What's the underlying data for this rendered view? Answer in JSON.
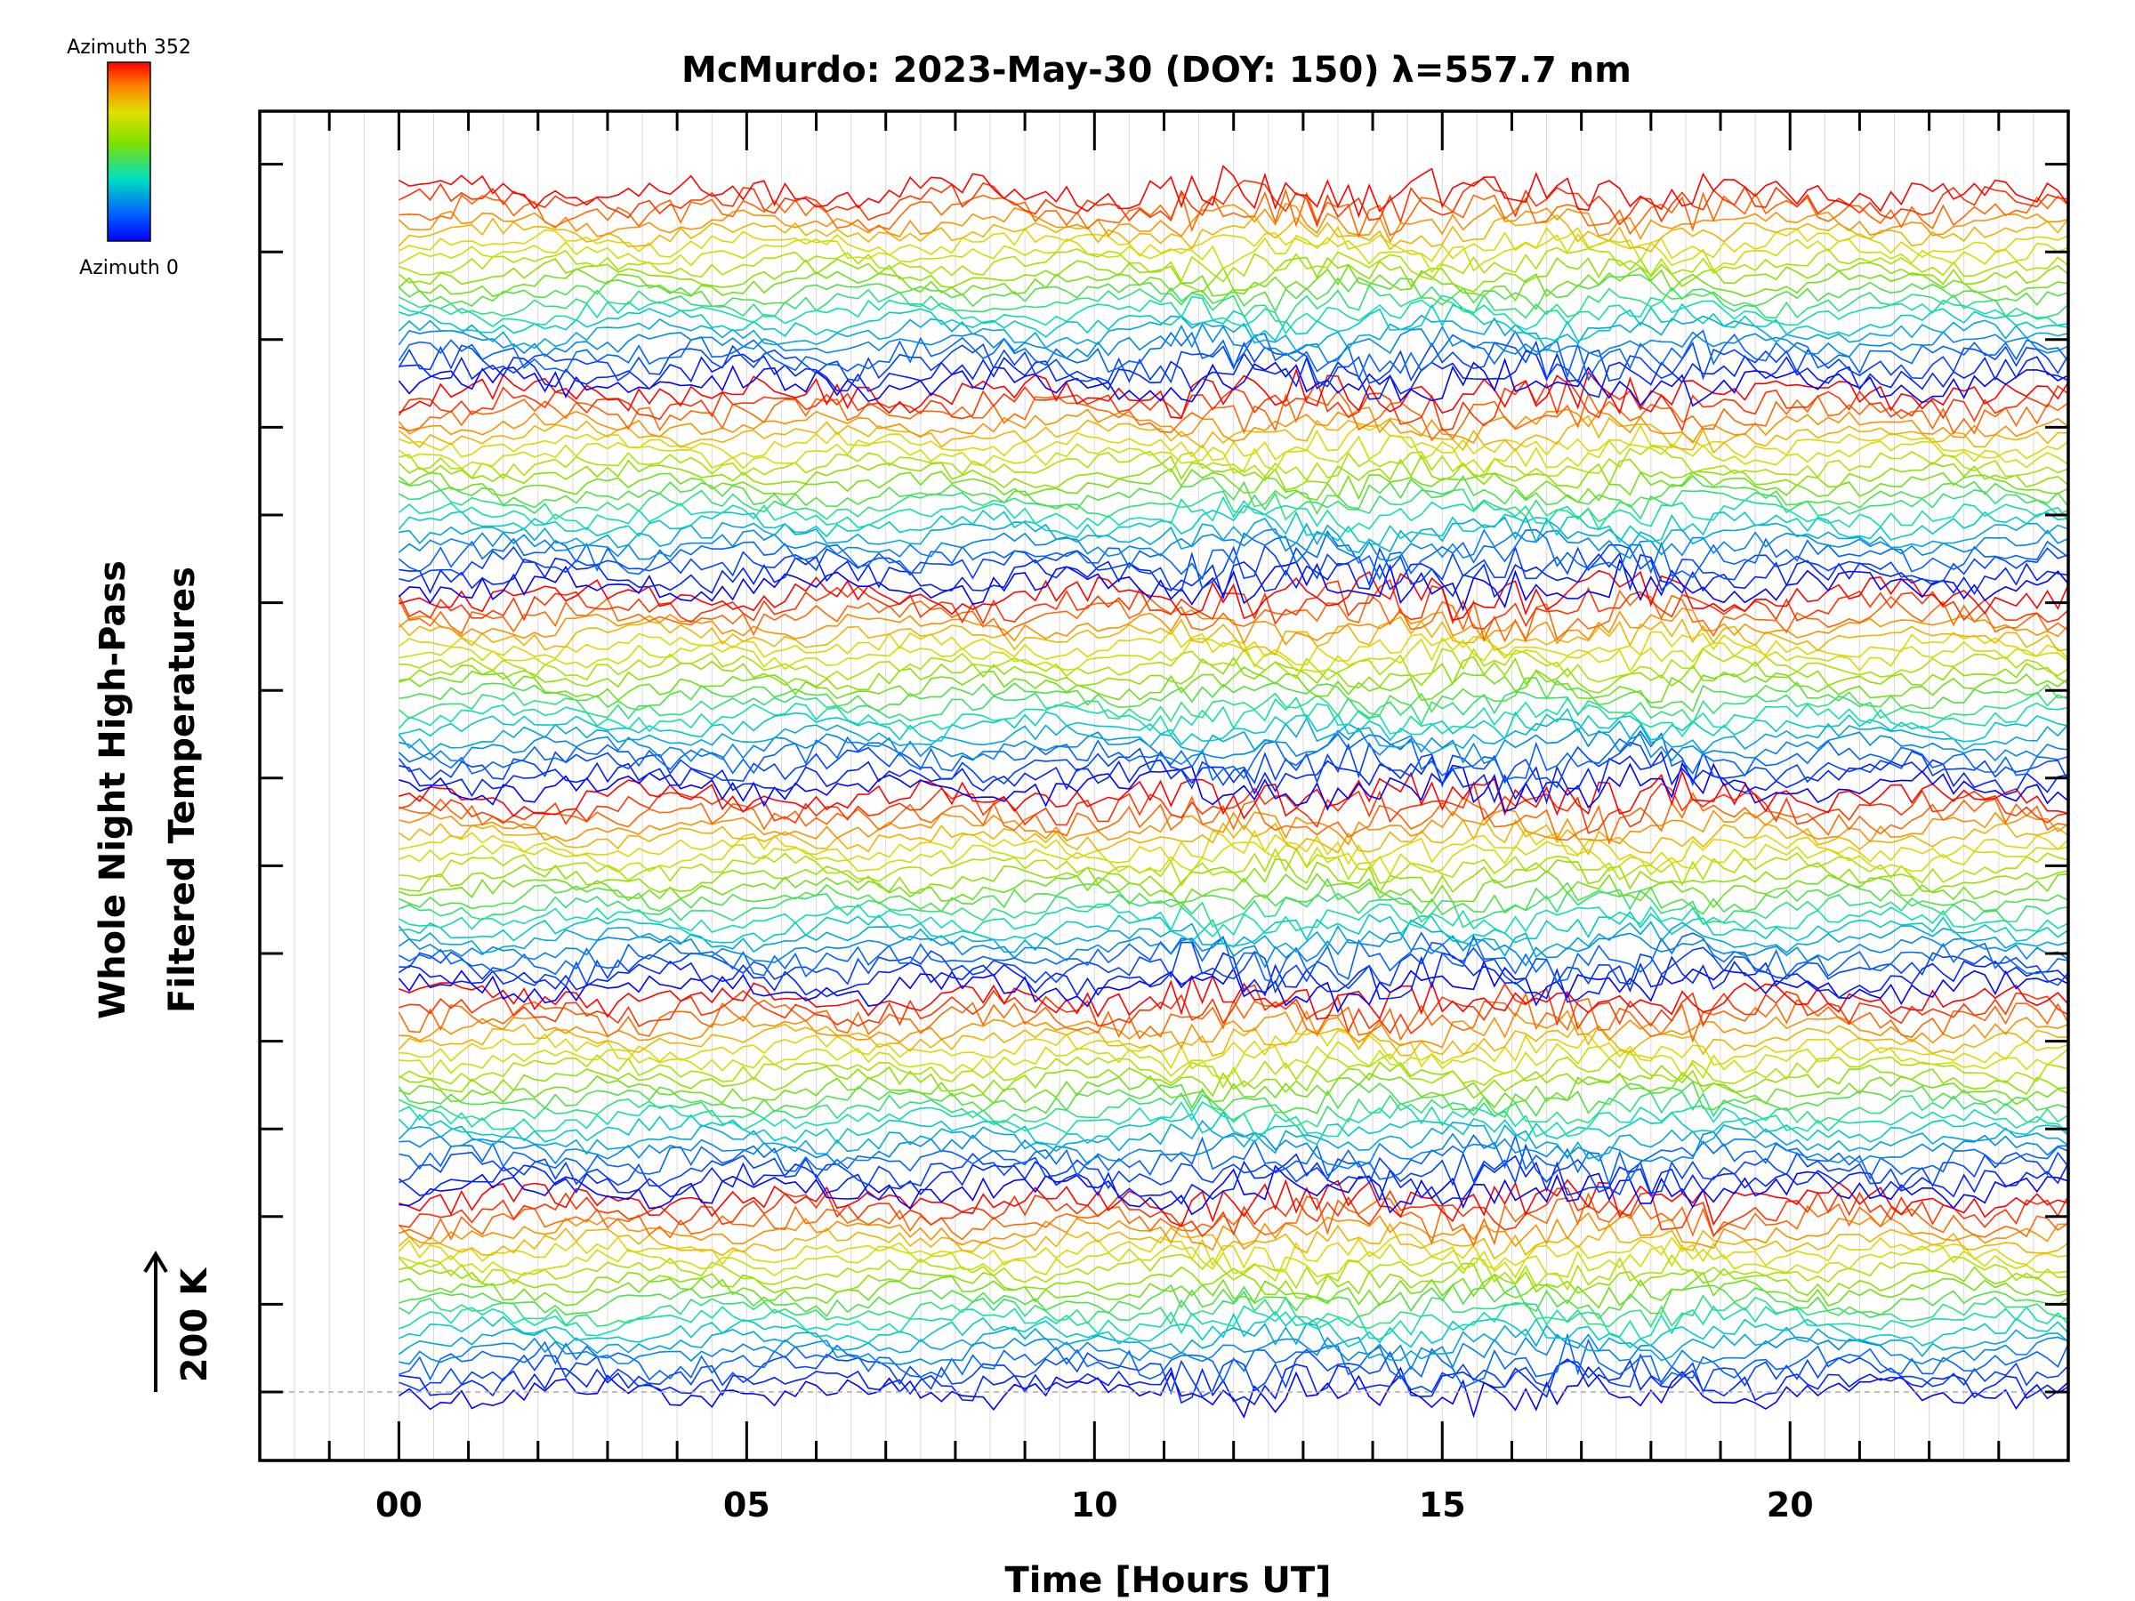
{
  "chart_data": {
    "type": "line",
    "title": "McMurdo: 2023-May-30 (DOY: 150) λ=557.7 nm",
    "xlabel": "Time [Hours UT]",
    "ylabel_line1": "Whole Night High-Pass",
    "ylabel_line2": "Filtered Temperatures",
    "scale_label": "200 K",
    "xlim": [
      -2,
      24
    ],
    "x_major_ticks": [
      0,
      5,
      10,
      15,
      20
    ],
    "x_tick_labels": [
      "00",
      "05",
      "10",
      "15",
      "20"
    ],
    "data_x_range": [
      0,
      24
    ],
    "colorbar": {
      "top_label": "Azimuth 352",
      "bottom_label": "Azimuth 0",
      "colors": [
        "#ff0000",
        "#ff8000",
        "#e0e000",
        "#80e000",
        "#00e080",
        "#00c0ff",
        "#0040ff",
        "#0000ff"
      ]
    },
    "series_groups": 6,
    "lines_per_group": 20,
    "grid": true
  }
}
